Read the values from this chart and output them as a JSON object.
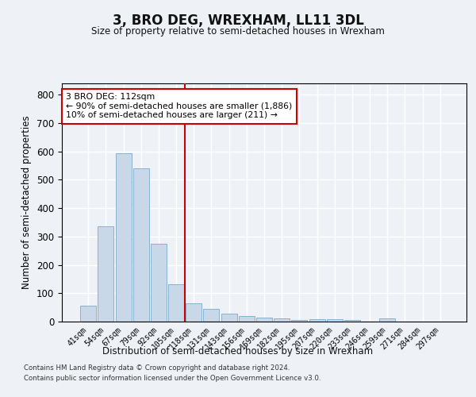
{
  "title": "3, BRO DEG, WREXHAM, LL11 3DL",
  "subtitle": "Size of property relative to semi-detached houses in Wrexham",
  "xlabel": "Distribution of semi-detached houses by size in Wrexham",
  "ylabel": "Number of semi-detached properties",
  "bar_color": "#c8d8e8",
  "bar_edge_color": "#7aaac8",
  "categories": [
    "41sqm",
    "54sqm",
    "67sqm",
    "79sqm",
    "92sqm",
    "105sqm",
    "118sqm",
    "131sqm",
    "143sqm",
    "156sqm",
    "169sqm",
    "182sqm",
    "195sqm",
    "207sqm",
    "220sqm",
    "233sqm",
    "246sqm",
    "259sqm",
    "271sqm",
    "284sqm",
    "297sqm"
  ],
  "values": [
    57,
    335,
    595,
    540,
    275,
    133,
    65,
    45,
    27,
    20,
    15,
    10,
    7,
    8,
    8,
    5,
    0,
    10,
    0,
    0,
    0
  ],
  "vline_index": 6,
  "vline_color": "#cc0000",
  "annotation_text": "3 BRO DEG: 112sqm\n← 90% of semi-detached houses are smaller (1,886)\n10% of semi-detached houses are larger (211) →",
  "annotation_box_color": "#ffffff",
  "annotation_box_edge": "#cc0000",
  "ylim": [
    0,
    840
  ],
  "yticks": [
    0,
    100,
    200,
    300,
    400,
    500,
    600,
    700,
    800
  ],
  "footer_line1": "Contains HM Land Registry data © Crown copyright and database right 2024.",
  "footer_line2": "Contains public sector information licensed under the Open Government Licence v3.0.",
  "bg_color": "#eef2f7",
  "grid_color": "#ffffff"
}
